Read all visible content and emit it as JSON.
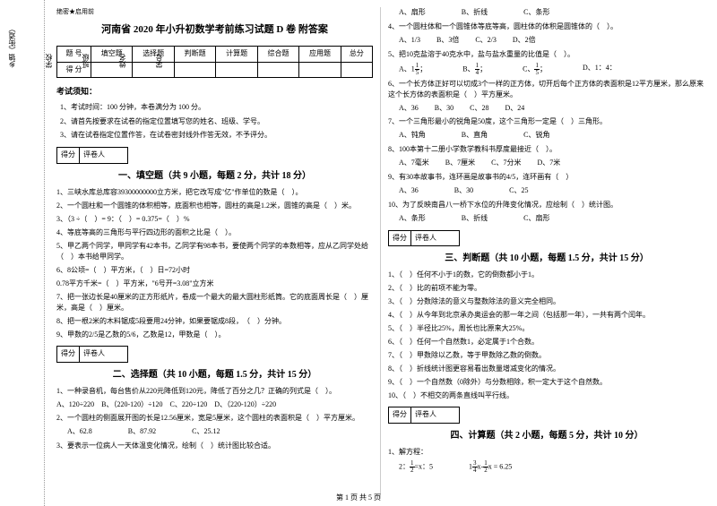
{
  "header_secret": "绝密★启用前",
  "title": "河南省 2020 年小升初数学考前练习试题 D 卷 附答案",
  "margin": {
    "labels": [
      "学号",
      "姓名",
      "班级",
      "学校",
      "乡镇（街道）"
    ],
    "notice": "考"
  },
  "score_table": {
    "row1": [
      "题 号",
      "填空题",
      "选择题",
      "判断题",
      "计算题",
      "综合题",
      "应用题",
      "总分"
    ],
    "row2": [
      "得 分",
      "",
      "",
      "",
      "",
      "",
      "",
      ""
    ]
  },
  "notice_head": "考试须知：",
  "notices": [
    "1、考试时间：100 分钟，本卷满分为 100 分。",
    "2、请首先按要求在试卷的指定位置填写您的姓名、班级、学号。",
    "3、请在试卷指定位置作答，在试卷密封线外作答无效，不予评分。"
  ],
  "scorebox": {
    "a": "得分",
    "b": "评卷人"
  },
  "sec1": {
    "title": "一、填空题（共 9 小题，每题 2 分，共计 18 分）",
    "q1": "1、三峡水库总库容39300000000立方米，把它改写成\"亿\"作单位的数是（　）。",
    "q2": "2、一个圆柱和一个圆锥的体积相等，底面积也相等，圆柱的高是1.2米，圆锥的高是（　）米。",
    "q3a": "3、（3 ÷（　）= 9：（　）= 0.375=（　）%",
    "q4": "4、等底等高的三角形与平行四边形的面积之比是（　）。",
    "q5": "5、甲乙两个同学，甲同学有42本书，乙同学有98本书，要使两个同学的本数相等，应从乙同学处给（　）本书给甲同学。",
    "q6a": "6、8公顷=（　）平方米，（　）日=72小时",
    "q6b": "   0.78平方千米=（　）平方米，\"6号开=3.08\"立方米",
    "q7": "7、把一张边长是40厘米的正方形纸片，卷成一个最大的最大圆柱形纸筒。它的底面周长是（　）厘米，高是（　）厘米。",
    "q8": "8、把一根2米的木料锯成5段要用24分钟，如果要锯成8段，　（　）分钟。",
    "q9": "9、甲数的2/5是乙数的5/6，乙数是12，甲数是（　）。"
  },
  "sec2": {
    "title": "二、选择题（共 10 小题，每题 1.5 分，共计 15 分）",
    "q1": "1、一种录音机，每台售价从220元降低到120元，降低了百分之几？正确的列式是（　）。",
    "q1opts": "A、120÷220　B、（220-120）÷120　C、220÷120　D、（220-120）÷220",
    "q2": "2、一个圆柱的侧面展开图的长是12.56厘米，宽是5厘米，这个圆柱的表面积是（　）平方厘米。",
    "q2a": "A、62.8",
    "q2b": "B、87.92",
    "q2c": "C、25.12",
    "q3": "3、要表示一位病人一天体温变化情况，绘制（　）统计图比较合适。",
    "q3a": "A、扇形",
    "q3b": "B、折线",
    "q3c": "C、条形",
    "q4": "4、一个圆柱体和一个圆锥体等底等高，圆柱体的体积是圆锥体的（　）。",
    "q4a": "A、1/3",
    "q4b": "B、3倍",
    "q4c": "C、2/3",
    "q4d": "D、2倍",
    "q5": "5、把10克盐溶于40克水中，盐与盐水重量的比值是（　）。",
    "q5a": "A、",
    "q5b": "B、",
    "q5c": "C、",
    "q5d": "D、1：4：",
    "q6": "6、一个长方体正好可以切成3个一样的正方体，切开后每个正方体的表面积是12平方厘米，那么原来这个长方体的表面积是（　）平方厘米。",
    "q6a": "A、36",
    "q6b": "B、30",
    "q6c": "C、28",
    "q6d": "D、24",
    "q7": "7、一个三角形最小的锐角是50度，这个三角形一定是（　）三角形。",
    "q7a": "A、钝角",
    "q7b": "B、直角",
    "q7c": "C、锐角",
    "q8": "8、100本第十二册小学数学教科书厚度最接近（　）。",
    "q8a": "A、7毫米",
    "q8b": "B、7厘米",
    "q8c": "C、7分米",
    "q8d": "D、7米",
    "q9": "9、有30本故事书，连环画是故事书的4/5，连环画有（　）",
    "q9a": "A、36",
    "q9b": "B、30",
    "q9c": "C、25",
    "q10": "10、为了反映南昌八一桥下水位的升降变化情况，应绘制（　）统计图。",
    "q10a": "A、条形",
    "q10b": "B、折线",
    "q10c": "C、扇形"
  },
  "sec3": {
    "title": "三、判断题（共 10 小题，每题 1.5 分，共计 15 分）",
    "q1": "1、（　）任何不小于1的数，它的倒数都小于1。",
    "q2": "2、（　）比的前项不能为零。",
    "q3": "3、（　）分数除法的意义与整数除法的意义完全相同。",
    "q4": "4、（　）从今年到北京承办奥运会的那一年之间（包括那一年），一共有两个闰年。",
    "q5": "5、（　）半径比25%，周长也比原来大25%。",
    "q6": "6、（　）任何一个自然数1，必定属于1个合数。",
    "q7": "7、（　）甲数除以乙数，等于甲数除乙数的倒数。",
    "q8": "8、（　）折线统计图更容易看出数量增减变化的情况。",
    "q9": "9、（　）一个自然数（0除外）与分数相除，积一定大于这个自然数。",
    "q10": "10、（　）不相交的两条直线叫平行线。"
  },
  "sec4": {
    "title": "四、计算题（共 2 小题，每题 5 分，共计 10 分）",
    "q1": "1、解方程：",
    "eq1": "2：",
    "eq1a": "=x：5",
    "eq2": "1",
    "eq2a": "x-",
    "eq2b": "x = 6.25"
  },
  "footer": "第 1 页 共 5 页"
}
